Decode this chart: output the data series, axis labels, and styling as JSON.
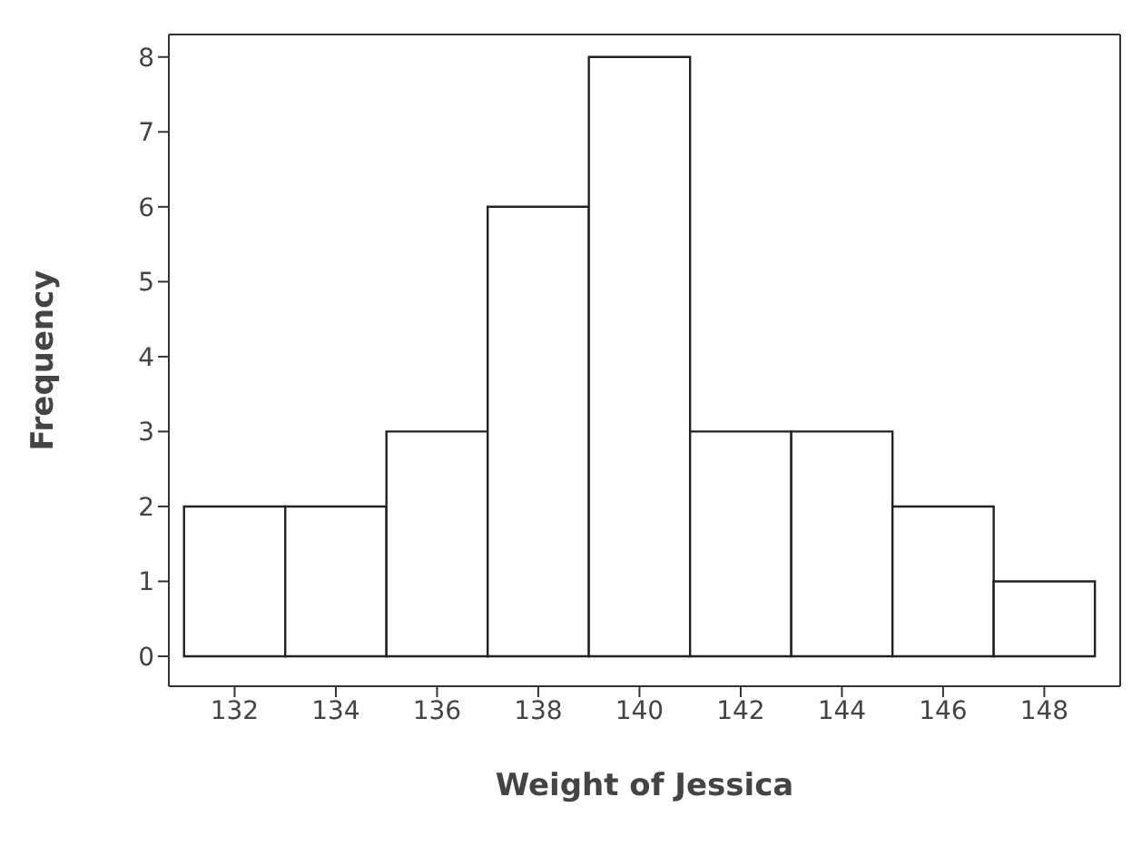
{
  "chart_data": {
    "type": "histogram",
    "xlabel": "Weight of Jessica",
    "ylabel": "Frequency",
    "bins": [
      131,
      133,
      135,
      137,
      139,
      141,
      143,
      145,
      147,
      149
    ],
    "values": [
      2,
      2,
      3,
      6,
      8,
      3,
      3,
      2,
      1
    ],
    "color": "#ffffff",
    "xlim": [
      130.7,
      149.5
    ],
    "xticks": [
      132,
      134,
      136,
      138,
      140,
      142,
      144,
      146,
      148
    ],
    "ylim": [
      -0.4,
      8.3
    ],
    "yticks": [
      0,
      1,
      2,
      3,
      4,
      5,
      6,
      7,
      8
    ]
  }
}
